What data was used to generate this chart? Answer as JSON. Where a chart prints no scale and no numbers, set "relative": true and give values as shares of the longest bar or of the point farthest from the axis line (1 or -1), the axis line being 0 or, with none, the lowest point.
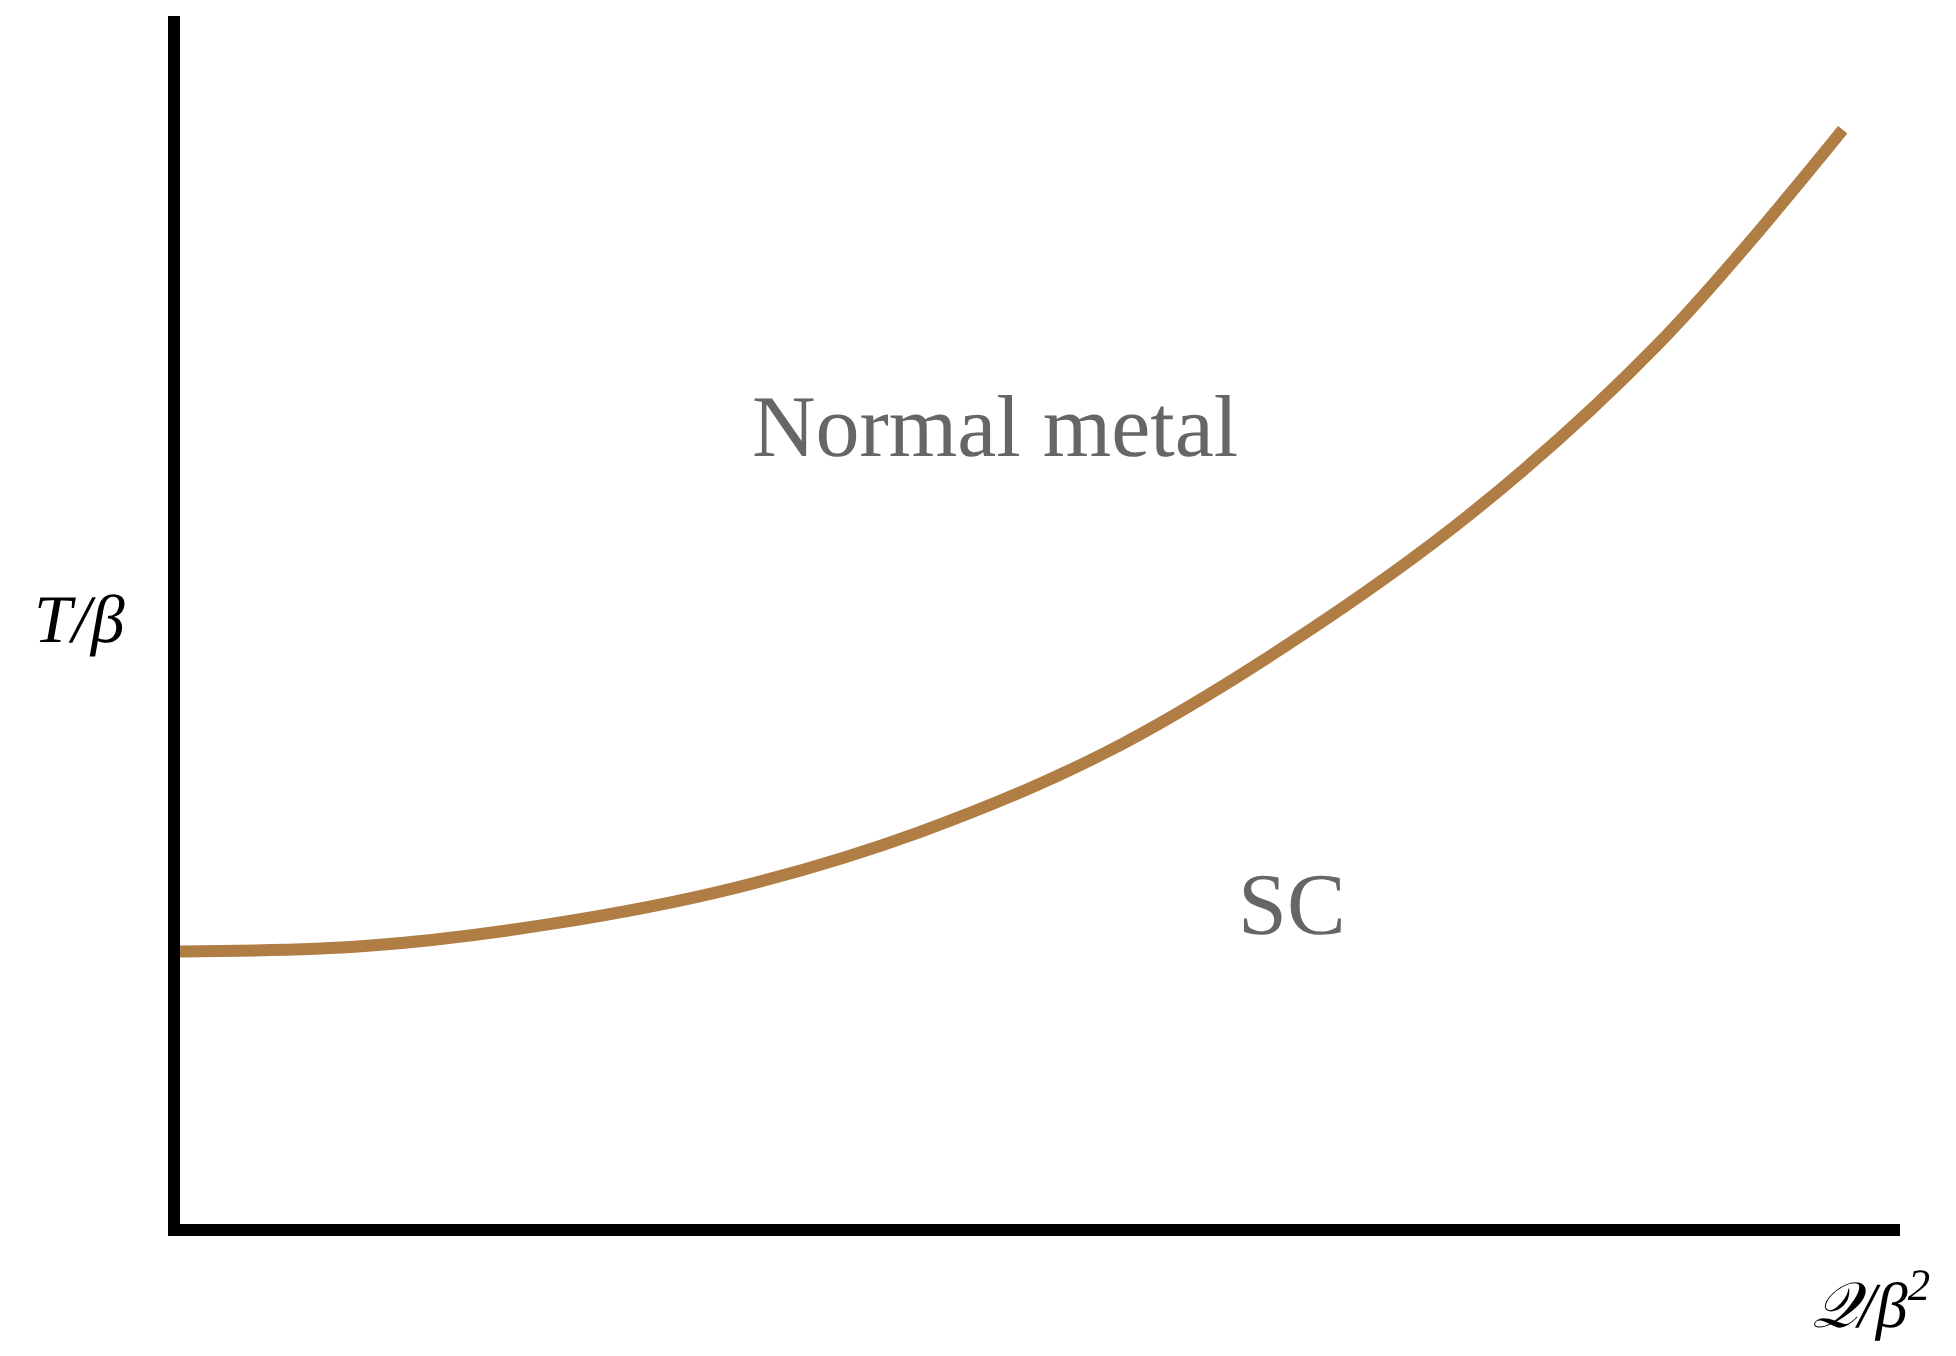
{
  "chart_data": {
    "type": "line",
    "relative": true,
    "xlabel": "𝒬/β$^{2}$",
    "ylabel": "T/β",
    "categories": [
      null,
      null,
      null,
      null,
      null,
      null,
      null,
      null,
      null,
      null
    ],
    "series": [
      {
        "color": "#b07d45",
        "values": [
          0.249,
          0.254,
          0.274,
          0.307,
          0.358,
          0.43,
          0.53,
          0.651,
          0.804,
          1.0
        ]
      }
    ],
    "annotations": [
      "Normal metal",
      "SC"
    ],
    "marker": "none",
    "line_style": "solid"
  }
}
